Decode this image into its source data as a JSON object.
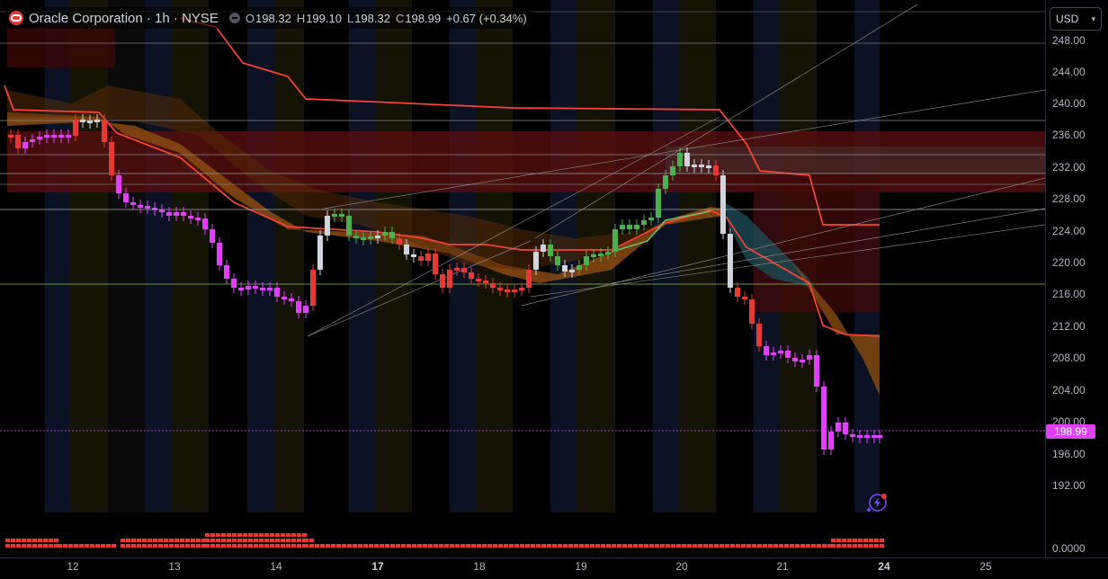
{
  "header": {
    "title": "Oracle Corporation · 1h · NYSE",
    "ohlc": [
      {
        "key": "O",
        "value": "198.32"
      },
      {
        "key": "H",
        "value": "199.10"
      },
      {
        "key": "L",
        "value": "198.32"
      },
      {
        "key": "C",
        "value": "198.99"
      }
    ],
    "change": "+0.67 (+0.34%)"
  },
  "currency": {
    "label": "USD"
  },
  "price_axis": {
    "labels": [
      "248.00",
      "244.00",
      "240.00",
      "236.00",
      "232.00",
      "228.00",
      "224.00",
      "220.00",
      "216.00",
      "212.00",
      "208.00",
      "204.00",
      "200.00",
      "196.00",
      "192.00"
    ],
    "current_price": "198.99",
    "volume_label": "0.0000"
  },
  "time_axis": {
    "labels": [
      "12",
      "13",
      "14",
      "17",
      "18",
      "19",
      "20",
      "21",
      "24",
      "25"
    ],
    "bold": [
      "17",
      "24"
    ]
  },
  "colors": {
    "up": "#4caf50",
    "down": "#e53935",
    "neutral": "#d1d4dc",
    "magenta": "#e040fb",
    "cloud_orange": "#8a4a12",
    "cloud_red": "#6b0f0f",
    "line_red": "#f44336"
  },
  "icons": [
    "oracle-logo-icon",
    "collapse-icon",
    "chevron-down-icon",
    "ai-assistant-icon"
  ]
}
